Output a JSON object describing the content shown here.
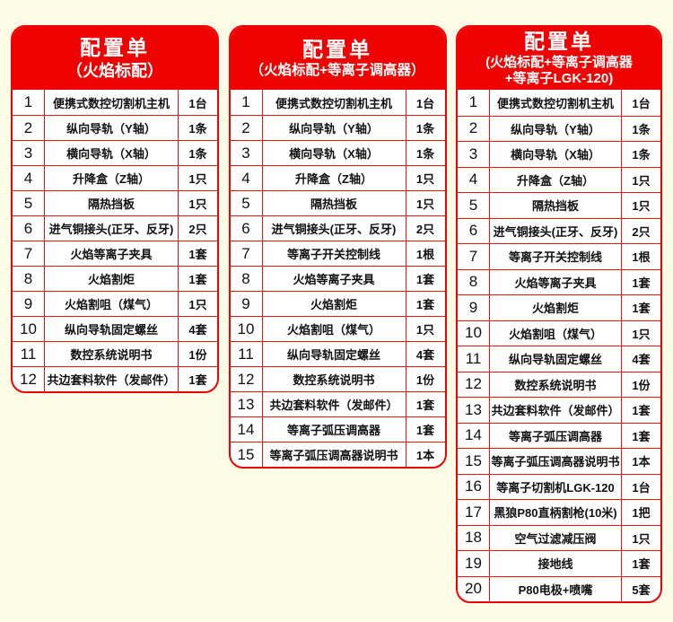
{
  "colors": {
    "header_red": "#ee0202",
    "border_red": "#ef1212",
    "page_bg": "#fcfbe6",
    "body_bg": "#ffffff",
    "text": "#111111",
    "header_text": "#ffffff"
  },
  "tables": [
    {
      "title": "配置单",
      "subtitle_lines": [
        "（火焰标配）"
      ],
      "rows": [
        {
          "no": "1",
          "item": "便携式数控切割机主机",
          "qty": "1台"
        },
        {
          "no": "2",
          "item": "纵向导轨（Y轴）",
          "qty": "1条"
        },
        {
          "no": "3",
          "item": "横向导轨（X轴）",
          "qty": "1条"
        },
        {
          "no": "4",
          "item": "升降盒（Z轴）",
          "qty": "1只"
        },
        {
          "no": "5",
          "item": "隔热挡板",
          "qty": "1只"
        },
        {
          "no": "6",
          "item": "进气铜接头(正牙、反牙)",
          "qty": "2只"
        },
        {
          "no": "7",
          "item": "火焰等离子夹具",
          "qty": "1套"
        },
        {
          "no": "8",
          "item": "火焰割炬",
          "qty": "1套"
        },
        {
          "no": "9",
          "item": "火焰割咀（煤气）",
          "qty": "1只"
        },
        {
          "no": "10",
          "item": "纵向导轨固定螺丝",
          "qty": "4套"
        },
        {
          "no": "11",
          "item": "数控系统说明书",
          "qty": "1份"
        },
        {
          "no": "12",
          "item": "共边套料软件（发邮件）",
          "qty": "1套"
        }
      ]
    },
    {
      "title": "配置单",
      "subtitle_lines": [
        "（火焰标配+等离子调高器）"
      ],
      "rows": [
        {
          "no": "1",
          "item": "便携式数控切割机主机",
          "qty": "1台"
        },
        {
          "no": "2",
          "item": "纵向导轨（Y轴）",
          "qty": "1条"
        },
        {
          "no": "3",
          "item": "横向导轨（X轴）",
          "qty": "1条"
        },
        {
          "no": "4",
          "item": "升降盒（Z轴）",
          "qty": "1只"
        },
        {
          "no": "5",
          "item": "隔热挡板",
          "qty": "1只"
        },
        {
          "no": "6",
          "item": "进气铜接头(正牙、反牙)",
          "qty": "2只"
        },
        {
          "no": "7",
          "item": "等离子开关控制线",
          "qty": "1根"
        },
        {
          "no": "8",
          "item": "火焰等离子夹具",
          "qty": "1套"
        },
        {
          "no": "9",
          "item": "火焰割炬",
          "qty": "1套"
        },
        {
          "no": "10",
          "item": "火焰割咀（煤气）",
          "qty": "1只"
        },
        {
          "no": "11",
          "item": "纵向导轨固定螺丝",
          "qty": "4套"
        },
        {
          "no": "12",
          "item": "数控系统说明书",
          "qty": "1份"
        },
        {
          "no": "13",
          "item": "共边套料软件（发邮件）",
          "qty": "1套"
        },
        {
          "no": "14",
          "item": "等离子弧压调高器",
          "qty": "1套"
        },
        {
          "no": "15",
          "item": "等离子弧压调高器说明书",
          "qty": "1本"
        }
      ]
    },
    {
      "title": "配置单",
      "subtitle_lines": [
        "(火焰标配+等离子调高器",
        "+等离子LGK-120)"
      ],
      "rows": [
        {
          "no": "1",
          "item": "便携式数控切割机主机",
          "qty": "1台"
        },
        {
          "no": "2",
          "item": "纵向导轨（Y轴）",
          "qty": "1条"
        },
        {
          "no": "3",
          "item": "横向导轨（X轴）",
          "qty": "1条"
        },
        {
          "no": "4",
          "item": "升降盒（Z轴）",
          "qty": "1只"
        },
        {
          "no": "5",
          "item": "隔热挡板",
          "qty": "1只"
        },
        {
          "no": "6",
          "item": "进气铜接头(正牙、反牙)",
          "qty": "2只"
        },
        {
          "no": "7",
          "item": "等离子开关控制线",
          "qty": "1根"
        },
        {
          "no": "8",
          "item": "火焰等离子夹具",
          "qty": "1套"
        },
        {
          "no": "9",
          "item": "火焰割炬",
          "qty": "1套"
        },
        {
          "no": "10",
          "item": "火焰割咀（煤气）",
          "qty": "1只"
        },
        {
          "no": "11",
          "item": "纵向导轨固定螺丝",
          "qty": "4套"
        },
        {
          "no": "12",
          "item": "数控系统说明书",
          "qty": "1份"
        },
        {
          "no": "13",
          "item": "共边套料软件（发邮件）",
          "qty": "1套"
        },
        {
          "no": "14",
          "item": "等离子弧压调高器",
          "qty": "1套"
        },
        {
          "no": "15",
          "item": "等离子弧压调高器说明书",
          "qty": "1本"
        },
        {
          "no": "16",
          "item": "等离子切割机LGK-120",
          "qty": "1台"
        },
        {
          "no": "17",
          "item": "黑狼P80直柄割枪(10米)",
          "qty": "1把"
        },
        {
          "no": "18",
          "item": "空气过滤减压阀",
          "qty": "1只"
        },
        {
          "no": "19",
          "item": "接地线",
          "qty": "1套"
        },
        {
          "no": "20",
          "item": "P80电极+喷嘴",
          "qty": "5套"
        }
      ]
    }
  ]
}
